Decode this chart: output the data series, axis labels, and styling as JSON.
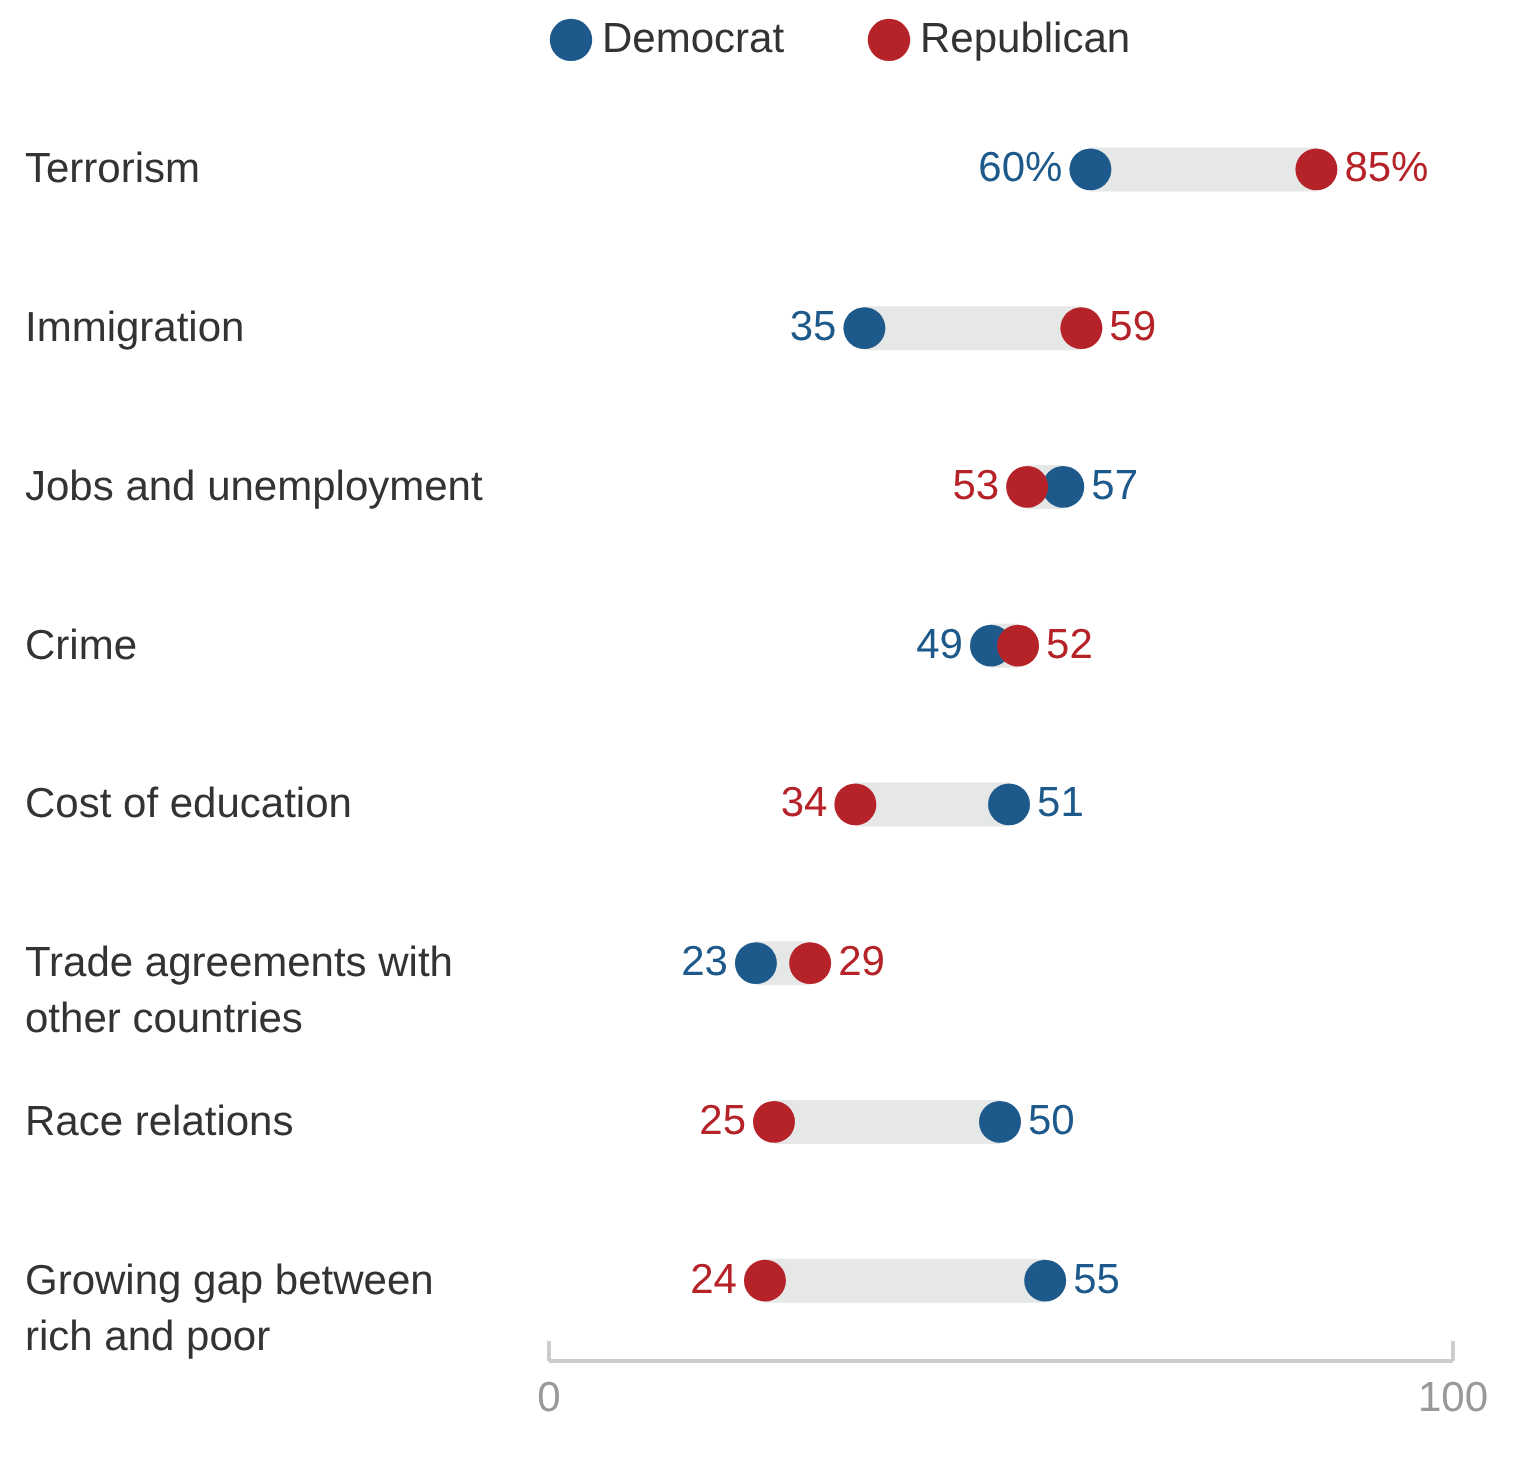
{
  "chart_data": {
    "type": "scatter",
    "orientation": "horizontal",
    "categories": [
      "Terrorism",
      "Immigration",
      "Jobs and unemployment",
      "Crime",
      "Cost of education",
      "Trade agreements with other countries",
      "Race relations",
      "Growing gap between rich and poor"
    ],
    "series": [
      {
        "name": "Democrat",
        "color": "#1d5a8b",
        "values": [
          60,
          35,
          57,
          49,
          51,
          23,
          50,
          55
        ],
        "value_labels": [
          "60%",
          "35",
          "57",
          "49",
          "51",
          "23",
          "50",
          "55"
        ]
      },
      {
        "name": "Republican",
        "color": "#b52228",
        "values": [
          85,
          59,
          53,
          52,
          34,
          29,
          25,
          24
        ],
        "value_labels": [
          "85%",
          "59",
          "53",
          "52",
          "34",
          "29",
          "25",
          "24"
        ]
      }
    ],
    "xlim": [
      0,
      100
    ],
    "xticks": [
      0,
      100
    ],
    "grid": false,
    "legend": "top",
    "marker": "circle",
    "data_labels": true
  }
}
